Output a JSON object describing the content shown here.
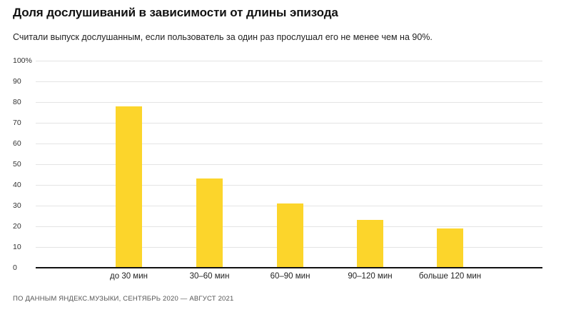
{
  "header": {
    "title": "Доля дослушиваний в зависимости от длины эпизода",
    "subtitle": "Считали выпуск дослушанным, если пользователь за один раз прослушал его не менее чем на 90%."
  },
  "footer": {
    "source": "ПО ДАННЫМ ЯНДЕКС.МУЗЫКИ, СЕНТЯБРЬ 2020 — АВГУСТ 2021"
  },
  "colors": {
    "bar": "#fcd52b",
    "grid": "#e4e4e4",
    "axis": "#111111"
  },
  "y_ticks": [
    "0",
    "10",
    "20",
    "30",
    "40",
    "50",
    "60",
    "70",
    "80",
    "90",
    "100%"
  ],
  "chart_data": {
    "type": "bar",
    "title": "Доля дослушиваний в зависимости от длины эпизода",
    "subtitle": "Считали выпуск дослушанным, если пользователь за один раз прослушал его не менее чем на 90%.",
    "categories": [
      "до 30 мин",
      "30–60 мин",
      "60–90 мин",
      "90–120 мин",
      "больше 120 мин"
    ],
    "values": [
      78,
      43,
      31,
      23,
      19
    ],
    "xlabel": "",
    "ylabel": "%",
    "ylim": [
      0,
      100
    ],
    "y_tick_step": 10,
    "grid": true,
    "legend": null,
    "source": "ПО ДАННЫМ ЯНДЕКС.МУЗЫКИ, СЕНТЯБРЬ 2020 — АВГУСТ 2021"
  }
}
